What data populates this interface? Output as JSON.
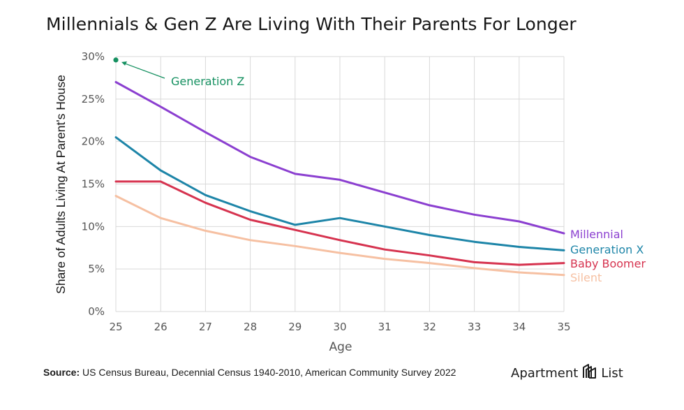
{
  "title": "Millennials & Gen Z Are Living With Their Parents For Longer",
  "source": {
    "label": "Source:",
    "text": " US Census Bureau, Decennial Census 1940-2010, American Community Survey 2022"
  },
  "brand": {
    "left": "Apartment",
    "right": "List",
    "icon": "apartment-list-logo-icon"
  },
  "colors": {
    "millennial": "#8b3fd0",
    "generation_x": "#1d85a8",
    "baby_boomer": "#d6334f",
    "silent": "#f6c0a2",
    "generation_z": "#159060",
    "grid": "#d9d9d9",
    "axis_text": "#555555"
  },
  "chart_data": {
    "type": "line",
    "title": "Millennials & Gen Z Are Living With Their Parents For Longer",
    "xlabel": "Age",
    "ylabel": "Share of Adults Living At Parent's House",
    "x": [
      25,
      26,
      27,
      28,
      29,
      30,
      31,
      32,
      33,
      34,
      35
    ],
    "xlim": [
      25,
      35
    ],
    "ylim": [
      0,
      30
    ],
    "yticks": [
      0,
      5,
      10,
      15,
      20,
      25,
      30
    ],
    "ytick_labels": [
      "0%",
      "5%",
      "10%",
      "15%",
      "20%",
      "25%",
      "30%"
    ],
    "grid": true,
    "series": [
      {
        "key": "millennial",
        "name": "Millennial",
        "values": [
          27.0,
          24.1,
          21.1,
          18.2,
          16.2,
          15.5,
          14.0,
          12.5,
          11.4,
          10.6,
          9.2
        ]
      },
      {
        "key": "generation_x",
        "name": "Generation X",
        "values": [
          20.5,
          16.6,
          13.7,
          11.8,
          10.2,
          11.0,
          10.0,
          9.0,
          8.2,
          7.6,
          7.2
        ]
      },
      {
        "key": "baby_boomer",
        "name": "Baby Boomer",
        "values": [
          15.3,
          15.3,
          12.8,
          10.8,
          9.6,
          8.4,
          7.3,
          6.6,
          5.8,
          5.5,
          5.7
        ]
      },
      {
        "key": "silent",
        "name": "Silent",
        "values": [
          13.6,
          11.0,
          9.5,
          8.4,
          7.7,
          6.9,
          6.2,
          5.7,
          5.1,
          4.6,
          4.3
        ]
      }
    ],
    "points": [
      {
        "key": "generation_z",
        "name": "Generation Z",
        "x": 25,
        "y": 29.6
      }
    ]
  }
}
